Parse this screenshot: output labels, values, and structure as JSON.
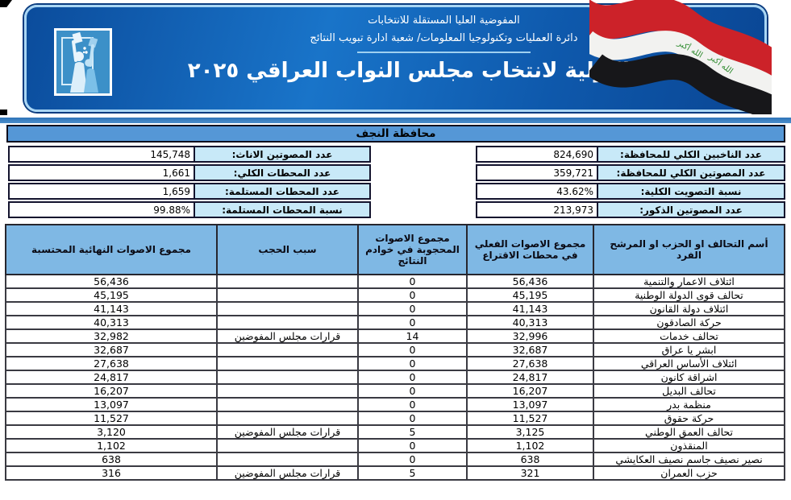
{
  "banner": {
    "org_line1": "المفوضية العليا المستقلة للانتخابات",
    "org_line2": "دائرة العمليات وتكنولوجيا المعلومات/ شعبة ادارة تبويب النتائج",
    "title": "النتائج الاولية لانتخاب مجلس النواب العراقي ٢٠٢٥",
    "flag_text_1": "الله أكبر",
    "flag_text_2": "الله أكبر"
  },
  "icons": {
    "logo": "ihec-ballot-box-logo",
    "flag": "iraq-flag-ribbon"
  },
  "governorate_bar": {
    "title": "محافظة النجف"
  },
  "stats": {
    "right": [
      {
        "label": "عدد الناخبين الكلي للمحافظة:",
        "value": "824,690"
      },
      {
        "label": "عدد المصوتين الكلي للمحافظة:",
        "value": "359,721"
      },
      {
        "label": "نسبة التصويت الكلية:",
        "value": "43.62%"
      },
      {
        "label": "عدد المصوتين الذكور:",
        "value": "213,973"
      }
    ],
    "left": [
      {
        "label": "عدد المصوتين الاناث:",
        "value": "145,748"
      },
      {
        "label": "عدد المحطات الكلي:",
        "value": "1,661"
      },
      {
        "label": "عدد المحطات المستلمة:",
        "value": "1,659"
      },
      {
        "label": "نسبة المحطات المستلمة:",
        "value": "99.88%"
      }
    ]
  },
  "results_table": {
    "headers": {
      "name": "أسم التحالف او الحزب او المرشح الفرد",
      "actual": "مجموع الاصوات الفعلي في محطات الاقتراع",
      "withheld": "مجموع الاصوات المحجوبة في خوادم النتائج",
      "reason": "سبب الحجب",
      "final": "مجموع الاصوات النهائية المحتسبة"
    },
    "rows": [
      {
        "name": "ائتلاف الاعمار والتنمية",
        "actual": "56,436",
        "withheld": "0",
        "reason": "",
        "final": "56,436"
      },
      {
        "name": "تحالف قوى الدولة الوطنية",
        "actual": "45,195",
        "withheld": "0",
        "reason": "",
        "final": "45,195"
      },
      {
        "name": "ائتلاف دولة القانون",
        "actual": "41,143",
        "withheld": "0",
        "reason": "",
        "final": "41,143"
      },
      {
        "name": "حركة الصادقون",
        "actual": "40,313",
        "withheld": "0",
        "reason": "",
        "final": "40,313"
      },
      {
        "name": "تحالف خدمات",
        "actual": "32,996",
        "withheld": "14",
        "reason": "قرارات مجلس المفوضين",
        "final": "32,982"
      },
      {
        "name": "ابشر يا عراق",
        "actual": "32,687",
        "withheld": "0",
        "reason": "",
        "final": "32,687"
      },
      {
        "name": "ائتلاف الأساس العراقي",
        "actual": "27,638",
        "withheld": "0",
        "reason": "",
        "final": "27,638"
      },
      {
        "name": "اشراقة كانون",
        "actual": "24,817",
        "withheld": "0",
        "reason": "",
        "final": "24,817"
      },
      {
        "name": "تحالف البديل",
        "actual": "16,207",
        "withheld": "0",
        "reason": "",
        "final": "16,207"
      },
      {
        "name": "منظمة بدر",
        "actual": "13,097",
        "withheld": "0",
        "reason": "",
        "final": "13,097"
      },
      {
        "name": "حركة حقوق",
        "actual": "11,527",
        "withheld": "0",
        "reason": "",
        "final": "11,527"
      },
      {
        "name": "تحالف العمق الوطني",
        "actual": "3,125",
        "withheld": "5",
        "reason": "قرارات مجلس المفوضين",
        "final": "3,120"
      },
      {
        "name": "المنقذون",
        "actual": "1,102",
        "withheld": "0",
        "reason": "",
        "final": "1,102"
      },
      {
        "name": "نصير نصيف جاسم نصيف العكايشي",
        "actual": "638",
        "withheld": "0",
        "reason": "",
        "final": "638"
      },
      {
        "name": "حزب العمران",
        "actual": "321",
        "withheld": "5",
        "reason": "قرارات مجلس المفوضين",
        "final": "316"
      }
    ]
  },
  "colors": {
    "banner_blue": "#0e58ab",
    "banner_border": "#a9d6f4",
    "table_header_blue": "#7fb8e4",
    "stat_label_blue": "#c8e9f8",
    "gov_bar_blue": "#5597d6",
    "flag_red": "#cc2229",
    "flag_black": "#17171a",
    "flag_green": "#2e8b2e"
  }
}
